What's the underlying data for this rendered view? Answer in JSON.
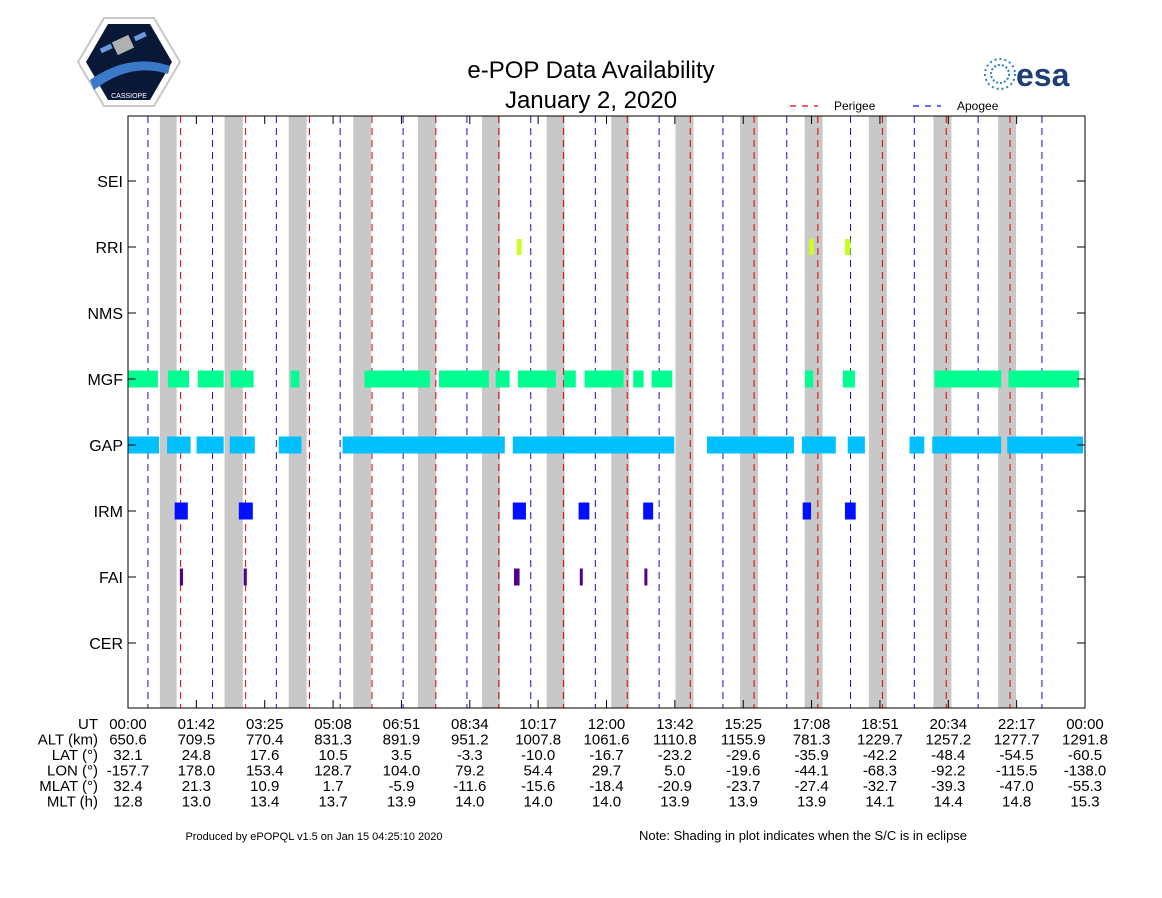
{
  "chart_data": {
    "type": "timeline",
    "title": "e-POP Data Availability",
    "subtitle": "January 2, 2020",
    "instruments": [
      "SEI",
      "RRI",
      "NMS",
      "MGF",
      "GAP",
      "IRM",
      "FAI",
      "CER"
    ],
    "x_range_hours": [
      0,
      24
    ],
    "legend": [
      {
        "name": "Perigee",
        "color": "#e00000",
        "style": "dashed"
      },
      {
        "name": "Apogee",
        "color": "#1010e0",
        "style": "dashed"
      }
    ],
    "eclipse_intervals_h": [
      [
        0.8,
        1.22
      ],
      [
        2.42,
        2.88
      ],
      [
        4.03,
        4.48
      ],
      [
        5.65,
        6.1
      ],
      [
        7.27,
        7.72
      ],
      [
        8.88,
        9.33
      ],
      [
        10.5,
        10.95
      ],
      [
        12.12,
        12.57
      ],
      [
        13.73,
        14.18
      ],
      [
        15.35,
        15.8
      ],
      [
        16.97,
        17.42
      ],
      [
        18.58,
        19.03
      ],
      [
        20.2,
        20.65
      ],
      [
        21.82,
        22.27
      ]
    ],
    "perigee_times_h": [
      1.32,
      2.95,
      4.55,
      6.12,
      7.72,
      9.3,
      10.92,
      12.52,
      14.1,
      15.7,
      17.3,
      18.92,
      20.52,
      22.12
    ],
    "apogee_times_h": [
      0.5,
      2.12,
      3.72,
      5.32,
      6.9,
      8.5,
      10.1,
      11.72,
      13.32,
      14.92,
      16.52,
      18.12,
      19.72,
      21.32,
      22.92
    ],
    "availability": {
      "SEI": [],
      "RRI": [
        [
          9.75,
          9.87
        ],
        [
          17.08,
          17.2
        ],
        [
          17.98,
          18.12
        ]
      ],
      "NMS": [],
      "MGF": [
        [
          0.0,
          0.75
        ],
        [
          1.0,
          1.53
        ],
        [
          1.75,
          2.4
        ],
        [
          2.57,
          3.15
        ],
        [
          4.08,
          4.3
        ],
        [
          5.93,
          7.57
        ],
        [
          7.8,
          9.05
        ],
        [
          9.22,
          9.57
        ],
        [
          9.78,
          10.73
        ],
        [
          10.93,
          11.23
        ],
        [
          11.45,
          12.43
        ],
        [
          12.67,
          12.93
        ],
        [
          13.13,
          13.65
        ],
        [
          16.98,
          17.18
        ],
        [
          17.93,
          18.23
        ],
        [
          20.23,
          21.9
        ],
        [
          22.08,
          23.85
        ]
      ],
      "GAP": [
        [
          0.0,
          0.78
        ],
        [
          0.98,
          1.57
        ],
        [
          1.72,
          2.4
        ],
        [
          2.55,
          3.18
        ],
        [
          3.78,
          4.35
        ],
        [
          5.38,
          9.45
        ],
        [
          9.65,
          13.7
        ],
        [
          14.52,
          16.7
        ],
        [
          16.9,
          17.75
        ],
        [
          18.05,
          18.48
        ],
        [
          19.6,
          19.97
        ],
        [
          20.17,
          21.9
        ],
        [
          22.05,
          23.95
        ]
      ],
      "IRM": [
        [
          1.17,
          1.5
        ],
        [
          2.78,
          3.13
        ],
        [
          9.65,
          9.98
        ],
        [
          11.3,
          11.57
        ],
        [
          12.92,
          13.17
        ],
        [
          16.92,
          17.13
        ],
        [
          17.98,
          18.25
        ]
      ],
      "FAI": [
        [
          1.3,
          1.38
        ],
        [
          2.9,
          2.98
        ],
        [
          9.68,
          9.82
        ],
        [
          11.33,
          11.38
        ],
        [
          12.95,
          13.0
        ]
      ],
      "CER": []
    },
    "colors": {
      "RRI": "#c8ff20",
      "MGF": "#00ff90",
      "GAP": "#00c0ff",
      "IRM": "#0010ff",
      "FAI": "#550088",
      "eclipse": "#c8c8c8"
    }
  },
  "table": {
    "rows": [
      {
        "label": "UT",
        "values": [
          "00:00",
          "01:42",
          "03:25",
          "05:08",
          "06:51",
          "08:34",
          "10:17",
          "12:00",
          "13:42",
          "15:25",
          "17:08",
          "18:51",
          "20:34",
          "22:17",
          "00:00"
        ]
      },
      {
        "label": "ALT (km)",
        "values": [
          "650.6",
          "709.5",
          "770.4",
          "831.3",
          "891.9",
          "951.2",
          "1007.8",
          "1061.6",
          "1110.8",
          "1155.9",
          "781.3",
          "1229.7",
          "1257.2",
          "1277.7",
          "1291.8"
        ]
      },
      {
        "label": "LAT (°)",
        "values": [
          "32.1",
          "24.8",
          "17.6",
          "10.5",
          "3.5",
          "-3.3",
          "-10.0",
          "-16.7",
          "-23.2",
          "-29.6",
          "-35.9",
          "-42.2",
          "-48.4",
          "-54.5",
          "-60.5"
        ]
      },
      {
        "label": "LON (°)",
        "values": [
          "-157.7",
          "178.0",
          "153.4",
          "128.7",
          "104.0",
          "79.2",
          "54.4",
          "29.7",
          "5.0",
          "-19.6",
          "-44.1",
          "-68.3",
          "-92.2",
          "-115.5",
          "-138.0"
        ]
      },
      {
        "label": "MLAT (°)",
        "values": [
          "32.4",
          "21.3",
          "10.9",
          "1.7",
          "-5.9",
          "-11.6",
          "-15.6",
          "-18.4",
          "-20.9",
          "-23.7",
          "-27.4",
          "-32.7",
          "-39.3",
          "-47.0",
          "-55.3"
        ]
      },
      {
        "label": "MLT (h)",
        "values": [
          "12.8",
          "13.0",
          "13.4",
          "13.7",
          "13.9",
          "14.0",
          "14.0",
          "14.0",
          "13.9",
          "13.9",
          "13.9",
          "14.1",
          "14.4",
          "14.8",
          "15.3"
        ]
      }
    ]
  },
  "footer": {
    "produced": "Produced by ePOPQL v1.5 on Jan 15 04:25:10 2020",
    "note": "Note: Shading in plot indicates when the S/C is in eclipse"
  },
  "logos": {
    "left": "CASSIOPE",
    "right": "esa"
  }
}
